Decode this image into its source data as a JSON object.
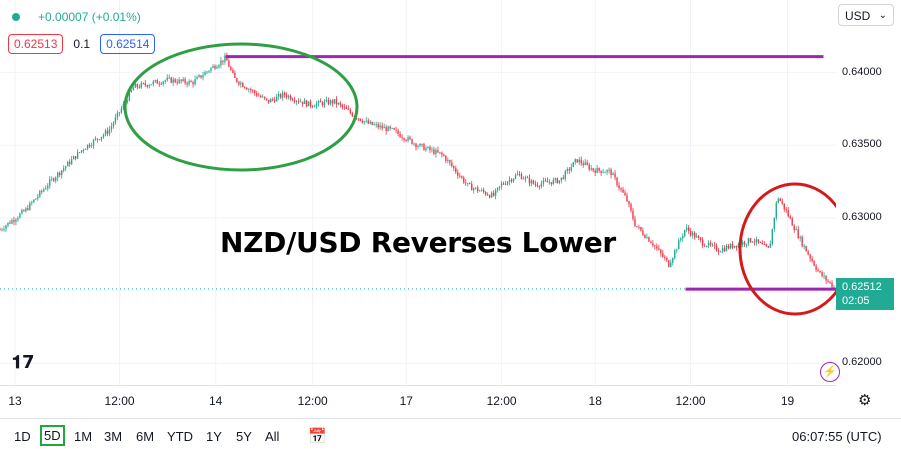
{
  "legend": {
    "change": "+0.00007 (+0.01%)",
    "sell_price": "0.62513",
    "spread": "0.1",
    "buy_price": "0.62514"
  },
  "currency": {
    "label": "USD",
    "icon": "chevron-down-icon"
  },
  "annotation": {
    "text": "NZD/USD Reverses Lower"
  },
  "price_badge": {
    "price": "0.62512",
    "countdown": "02:05"
  },
  "bottom_bar": {
    "ranges": [
      "1D",
      "5D",
      "1M",
      "3M",
      "6M",
      "YTD",
      "1Y",
      "5Y",
      "All"
    ],
    "active_range": "5D",
    "clock": "06:07:55 (UTC)"
  },
  "colors": {
    "up": "#22ab94",
    "down": "#f23645",
    "line": "#9c27b0",
    "green_ellipse": "#2ea043",
    "red_ellipse": "#d61a1a"
  },
  "chart_data": {
    "type": "line",
    "title": "",
    "xlabel": "",
    "ylabel": "",
    "ylim": [
      0.6185,
      0.645
    ],
    "y_ticks": [
      "0.64000",
      "0.63500",
      "0.63000",
      "0.62500",
      "0.62000"
    ],
    "y_tick_values": [
      0.64,
      0.635,
      0.63,
      0.625,
      0.62
    ],
    "x_ticks": [
      "13",
      "12:00",
      "14",
      "12:00",
      "17",
      "12:00",
      "18",
      "12:00",
      "19"
    ],
    "x_tick_values": [
      0.018,
      0.143,
      0.258,
      0.374,
      0.486,
      0.6,
      0.712,
      0.826,
      0.942
    ],
    "series": [
      {
        "x": [
          0.0,
          0.03,
          0.06,
          0.1,
          0.13,
          0.145,
          0.16,
          0.2,
          0.23,
          0.25,
          0.27,
          0.28,
          0.3,
          0.32,
          0.34,
          0.37,
          0.4,
          0.42,
          0.44,
          0.47,
          0.5,
          0.53,
          0.56,
          0.59,
          0.6,
          0.62,
          0.64,
          0.67,
          0.69,
          0.71,
          0.73,
          0.75,
          0.76,
          0.78,
          0.8,
          0.82,
          0.84,
          0.86,
          0.9,
          0.92,
          0.93,
          0.94,
          0.96,
          0.98,
          1.0
        ],
        "y": [
          0.6292,
          0.6305,
          0.6325,
          0.6348,
          0.636,
          0.6375,
          0.639,
          0.6395,
          0.6393,
          0.6402,
          0.641,
          0.6396,
          0.6388,
          0.638,
          0.6385,
          0.6378,
          0.638,
          0.6372,
          0.6365,
          0.636,
          0.635,
          0.6343,
          0.6322,
          0.6315,
          0.6323,
          0.633,
          0.6323,
          0.6326,
          0.634,
          0.6333,
          0.6332,
          0.6312,
          0.6295,
          0.6283,
          0.6268,
          0.6293,
          0.6283,
          0.6278,
          0.6285,
          0.6278,
          0.6315,
          0.6305,
          0.6282,
          0.6262,
          0.6251
        ]
      }
    ],
    "horizontal_lines": [
      {
        "y": 0.6411,
        "x_start": 0.27,
        "x_end": 0.985
      },
      {
        "y": 0.6251,
        "x_start": 0.82,
        "x_end": 1.0
      }
    ],
    "current_price_line": 0.62512
  }
}
